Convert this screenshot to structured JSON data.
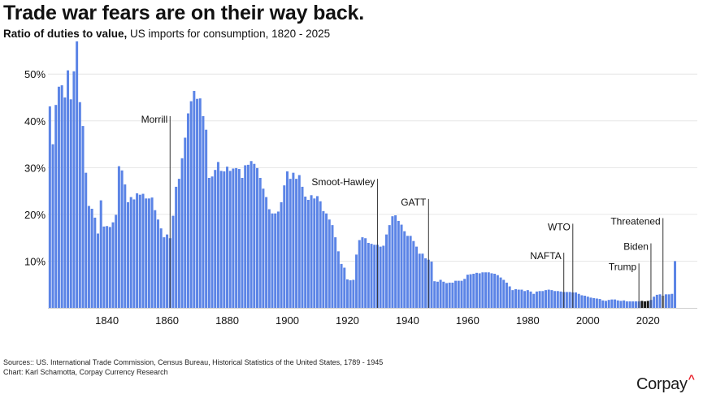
{
  "title": "Trade war fears are on their way back.",
  "subtitle": {
    "bold": "Ratio of duties to value,",
    "rest": " US imports for consumption, 1820 - 2025"
  },
  "sources": {
    "line1": "Sources:: US. International Trade Commission, Census Bureau, Historical Statistics of the United States, 1789 - 1945",
    "line2": "Chart: Karl Schamotta, Corpay Currency Research"
  },
  "logo": {
    "text": "Corpay",
    "mark": "^"
  },
  "colors": {
    "bar": "#5b84e6",
    "trump": "#1a1a1a",
    "biden": "#1a1a1a",
    "threatened": "#8a8a8a",
    "gridline": "#e6e6e6",
    "annotation_line": "#333333"
  },
  "chart_data": {
    "type": "bar",
    "title": "Trade war fears are on their way back.",
    "xlabel": "",
    "ylabel": "",
    "xlim": [
      1820,
      2025
    ],
    "ylim": [
      0,
      57
    ],
    "yticks": [
      10,
      20,
      30,
      40,
      50
    ],
    "ytick_labels": [
      "10%",
      "20%",
      "30%",
      "40%",
      "50%"
    ],
    "xticks": [
      1840,
      1860,
      1880,
      1900,
      1920,
      1940,
      1960,
      1980,
      2000,
      2020
    ],
    "xtick_labels": [
      "1840",
      "1860",
      "1880",
      "1900",
      "1920",
      "1940",
      "1960",
      "1980",
      "2000",
      "2020"
    ],
    "grid": true,
    "start_year": 1821,
    "values": [
      43.1,
      35,
      43.4,
      47.3,
      47.6,
      45,
      50.8,
      44.6,
      50.6,
      57,
      44,
      38.9,
      28.9,
      21.8,
      21.2,
      19.3,
      15.9,
      23,
      17.4,
      17.5,
      17.3,
      18.3,
      19.9,
      30.3,
      29.4,
      26.4,
      22.6,
      23.7,
      23.2,
      24.5,
      24.2,
      24.4,
      23.4,
      23.4,
      23.6,
      20.9,
      18.9,
      17,
      15.1,
      15.7,
      14.9,
      19.7,
      25.9,
      27.6,
      32,
      36.4,
      41.6,
      44.2,
      46.4,
      44.7,
      44.8,
      41,
      38.1,
      27.8,
      28.1,
      29.5,
      31.2,
      29.3,
      29.2,
      30.2,
      29.3,
      29.8,
      29.9,
      29.7,
      27.8,
      30.5,
      30.6,
      31.4,
      30.8,
      29.9,
      27.8,
      25.5,
      23.7,
      21.1,
      20.2,
      20.2,
      20.6,
      22.6,
      26.2,
      29.2,
      27.6,
      28.9,
      27.6,
      28.4,
      25.9,
      23.8,
      23.1,
      24.1,
      23.4,
      23.9,
      22.8,
      20.7,
      20.2,
      18.9,
      17.7,
      15.1,
      12.1,
      9.4,
      8.6,
      6.1,
      5.9,
      6,
      11.4,
      14.5,
      15.1,
      14.9,
      13.9,
      13.7,
      13.5,
      13.5,
      13.1,
      13.3,
      15.7,
      17.7,
      19.6,
      19.8,
      18.6,
      17.8,
      16.4,
      15.4,
      15.4,
      14.3,
      13.1,
      11.6,
      11.6,
      10.6,
      10.3,
      9.9,
      5.7,
      5.6,
      6,
      5.6,
      5.3,
      5.4,
      5.4,
      5.8,
      5.8,
      5.8,
      6.2,
      7.1,
      7.2,
      7.3,
      7.5,
      7.4,
      7.6,
      7.6,
      7.6,
      7.4,
      7.3,
      7.0,
      6.5,
      6,
      5.4,
      4.6,
      3.8,
      4,
      3.9,
      3.9,
      3.6,
      3.8,
      3.5,
      3,
      3.5,
      3.6,
      3.6,
      3.8,
      3.9,
      3.8,
      3.6,
      3.6,
      3.5,
      3.4,
      3.4,
      3.4,
      3.3,
      3.3,
      3,
      2.7,
      2.6,
      2.4,
      2.2,
      2.1,
      2,
      1.9,
      1.6,
      1.5,
      1.7,
      1.8,
      1.8,
      1.6,
      1.5,
      1.6,
      1.4,
      1.4,
      1.4,
      1.4,
      1.4,
      1.5,
      1.4,
      1.5,
      1.7,
      2.4,
      2.8,
      2.9,
      2.6,
      2.9,
      2.9,
      3,
      10
    ],
    "highlights": [
      {
        "from": 2018,
        "to": 2020,
        "color_key": "trump"
      },
      {
        "from": 2021,
        "to": 2024,
        "color_key": "bar"
      },
      {
        "from": 2025,
        "to": 2025,
        "color_key": "threatened"
      }
    ],
    "annotations": [
      {
        "label": "Morrill",
        "year": 1861,
        "line_top_value": 41
      },
      {
        "label": "Smoot-Hawley",
        "year": 1930,
        "line_top_value": 27.6
      },
      {
        "label": "GATT",
        "year": 1947,
        "line_top_value": 23.3
      },
      {
        "label": "NAFTA",
        "year": 1992,
        "line_top_value": 11.8
      },
      {
        "label": "WTO",
        "year": 1995,
        "line_top_value": 18
      },
      {
        "label": "Trump",
        "year": 2017,
        "line_top_value": 9.5
      },
      {
        "label": "Biden",
        "year": 2021,
        "line_top_value": 13.8
      },
      {
        "label": "Threatened",
        "year": 2025,
        "line_top_value": 19.2
      }
    ]
  }
}
